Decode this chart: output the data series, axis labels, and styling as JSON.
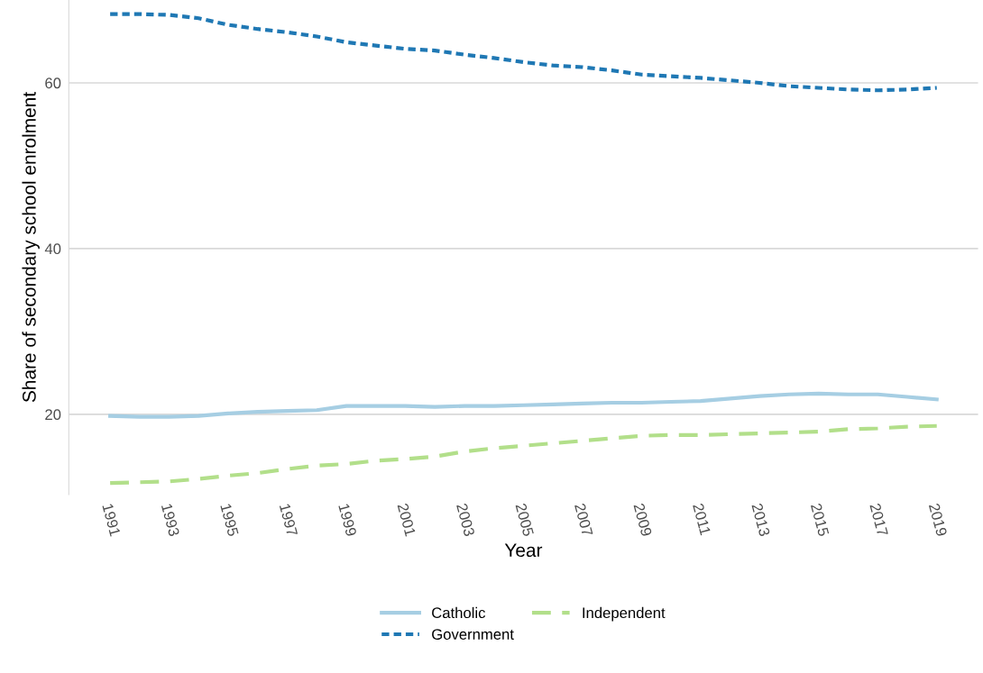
{
  "chart_data": {
    "type": "line",
    "xlabel": "Year",
    "ylabel": "Share of secondary school enrolment",
    "x": [
      1991,
      1992,
      1993,
      1994,
      1995,
      1996,
      1997,
      1998,
      1999,
      2000,
      2001,
      2002,
      2003,
      2004,
      2005,
      2006,
      2007,
      2008,
      2009,
      2010,
      2011,
      2012,
      2013,
      2014,
      2015,
      2016,
      2017,
      2018,
      2019
    ],
    "series": [
      {
        "name": "Catholic",
        "color": "#a6cee3",
        "line_style": "solid",
        "values": [
          19.8,
          19.7,
          19.7,
          19.8,
          20.1,
          20.3,
          20.4,
          20.5,
          21.0,
          21.0,
          21.0,
          20.9,
          21.0,
          21.0,
          21.1,
          21.2,
          21.3,
          21.4,
          21.4,
          21.5,
          21.6,
          21.9,
          22.2,
          22.4,
          22.5,
          22.4,
          22.4,
          22.1,
          21.8
        ]
      },
      {
        "name": "Independent",
        "color": "#b2df8a",
        "line_style": "dashed",
        "values": [
          11.7,
          11.8,
          11.9,
          12.2,
          12.6,
          12.9,
          13.4,
          13.8,
          14.0,
          14.4,
          14.6,
          14.9,
          15.5,
          15.9,
          16.2,
          16.5,
          16.8,
          17.1,
          17.4,
          17.5,
          17.5,
          17.6,
          17.7,
          17.8,
          17.9,
          18.2,
          18.3,
          18.5,
          18.6
        ]
      },
      {
        "name": "Government",
        "color": "#1f78b4",
        "line_style": "dotted",
        "values": [
          68.3,
          68.3,
          68.2,
          67.8,
          67.0,
          66.5,
          66.1,
          65.6,
          64.9,
          64.5,
          64.1,
          63.9,
          63.4,
          63.0,
          62.5,
          62.1,
          61.9,
          61.5,
          61.0,
          60.8,
          60.6,
          60.3,
          60.0,
          59.6,
          59.4,
          59.2,
          59.1,
          59.2,
          59.4
        ]
      }
    ],
    "xlim": [
      1989.6,
      2020.4
    ],
    "xticks": [
      1991,
      1993,
      1995,
      1997,
      1999,
      2001,
      2003,
      2005,
      2007,
      2009,
      2011,
      2013,
      2015,
      2017,
      2019
    ],
    "ylim": [
      10.3,
      70.0
    ],
    "yticks": [
      20,
      40,
      60
    ],
    "grid": "y",
    "legend": "bottom",
    "marker": "none"
  }
}
